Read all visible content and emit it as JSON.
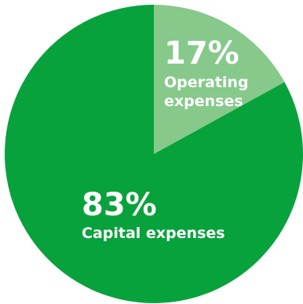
{
  "chart_data": {
    "type": "pie",
    "slices": [
      {
        "percent_label": "83%",
        "label": "Capital expenses",
        "value": 83,
        "color": "#08a23c"
      },
      {
        "percent_label": "17%",
        "label": "Operating expenses",
        "label_lines": [
          "Operating",
          "expenses"
        ],
        "value": 17,
        "color": "#86c98b"
      }
    ],
    "start_angle_deg": 0,
    "direction": "clockwise"
  }
}
